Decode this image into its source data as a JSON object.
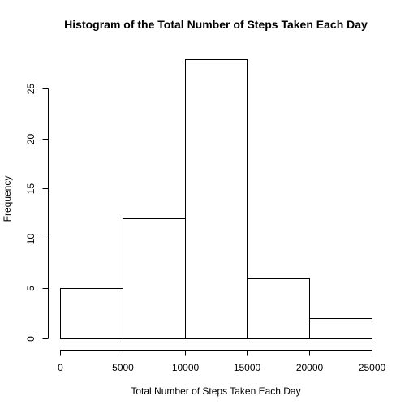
{
  "chart_data": {
    "type": "bar",
    "subtype": "histogram",
    "title": "Histogram of the Total Number of Steps Taken Each Day",
    "xlabel": "Total Number of Steps Taken Each Day",
    "ylabel": "Frequency",
    "bins": [
      {
        "start": 0,
        "end": 5000,
        "count": 5
      },
      {
        "start": 5000,
        "end": 10000,
        "count": 12
      },
      {
        "start": 10000,
        "end": 15000,
        "count": 28
      },
      {
        "start": 15000,
        "end": 20000,
        "count": 6
      },
      {
        "start": 20000,
        "end": 25000,
        "count": 2
      }
    ],
    "xlim": [
      0,
      25000
    ],
    "ylim": [
      0,
      28
    ],
    "xticks": [
      "0",
      "5000",
      "10000",
      "15000",
      "20000",
      "25000"
    ],
    "yticks": [
      "0",
      "5",
      "10",
      "15",
      "20",
      "25"
    ],
    "grid": false,
    "legend": "none",
    "colors": {
      "bar_fill": "#ffffff",
      "bar_stroke": "#000000"
    }
  }
}
